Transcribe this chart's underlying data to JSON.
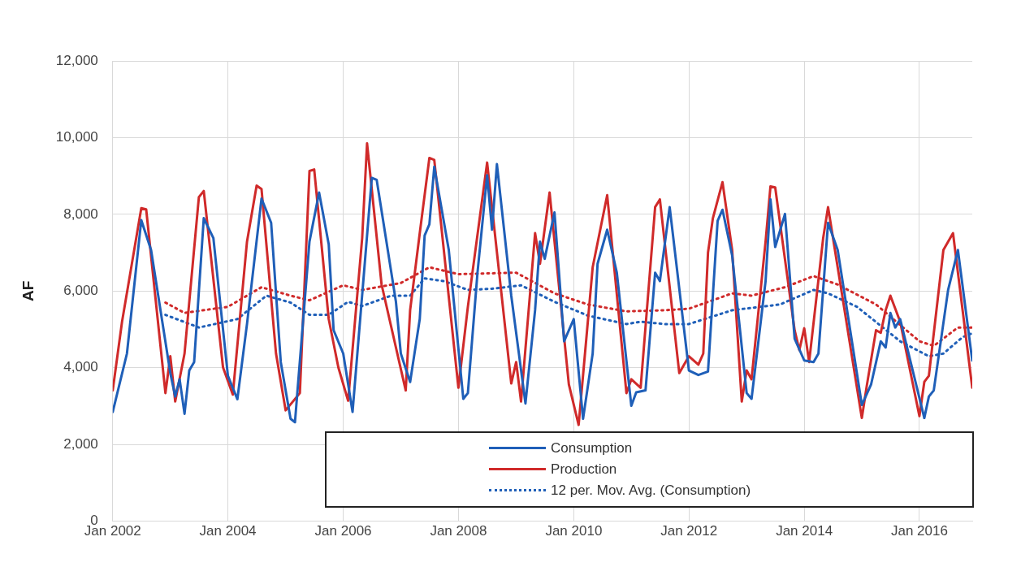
{
  "chart_data": {
    "type": "line",
    "ylabel": "AF",
    "xlim": [
      "2002-01",
      "2016-12"
    ],
    "xticks": [
      {
        "value": "2002-01",
        "label": "Jan 2002"
      },
      {
        "value": "2004-01",
        "label": "Jan 2004"
      },
      {
        "value": "2006-01",
        "label": "Jan 2006"
      },
      {
        "value": "2008-01",
        "label": "Jan 2008"
      },
      {
        "value": "2010-01",
        "label": "Jan 2010"
      },
      {
        "value": "2012-01",
        "label": "Jan 2012"
      },
      {
        "value": "2014-01",
        "label": "Jan 2014"
      },
      {
        "value": "2016-01",
        "label": "Jan 2016"
      }
    ],
    "ylim": [
      0,
      12000
    ],
    "yticks": [
      0,
      {
        "value": 2000,
        "label": "2,000"
      },
      {
        "value": 4000,
        "label": "4,000"
      },
      {
        "value": 6000,
        "label": "6,000"
      },
      {
        "value": 8000,
        "label": "8,000"
      },
      {
        "value": 10000,
        "label": "10,000"
      },
      {
        "value": 12000,
        "label": "12,000"
      }
    ],
    "grid": true,
    "legend": "bottom right",
    "marker": "none",
    "series": [
      {
        "name": "Consumption",
        "color": "#1f5fb8",
        "line_style": "solid",
        "x": [
          "2002-01",
          "2002-04",
          "2002-07",
          "2002-09",
          "2003-01",
          "2003-02",
          "2003-03",
          "2003-04",
          "2003-05",
          "2003-06",
          "2003-08",
          "2003-10",
          "2004-01",
          "2004-03",
          "2004-05",
          "2004-08",
          "2004-10",
          "2004-12",
          "2005-02",
          "2005-03",
          "2005-06",
          "2005-08",
          "2005-10",
          "2005-11",
          "2006-01",
          "2006-03",
          "2006-07",
          "2006-08",
          "2006-12",
          "2007-01",
          "2007-03",
          "2007-05",
          "2007-06",
          "2007-07",
          "2007-08",
          "2007-11",
          "2008-02",
          "2008-03",
          "2008-05",
          "2008-07",
          "2008-08",
          "2008-09",
          "2008-12",
          "2009-03",
          "2009-05",
          "2009-06",
          "2009-07",
          "2009-09",
          "2009-11",
          "2010-01",
          "2010-03",
          "2010-05",
          "2010-06",
          "2010-08",
          "2010-10",
          "2011-01",
          "2011-02",
          "2011-04",
          "2011-06",
          "2011-07",
          "2011-09",
          "2012-01",
          "2012-03",
          "2012-05",
          "2012-07",
          "2012-08",
          "2012-10",
          "2013-01",
          "2013-02",
          "2013-05",
          "2013-06",
          "2013-07",
          "2013-09",
          "2013-11",
          "2014-01",
          "2014-03",
          "2014-04",
          "2014-06",
          "2014-08",
          "2015-01",
          "2015-03",
          "2015-05",
          "2015-06",
          "2015-07",
          "2015-08",
          "2015-09",
          "2016-02",
          "2016-03",
          "2016-04",
          "2016-07",
          "2016-09",
          "2016-12"
        ],
        "values": [
          2850,
          4370,
          7850,
          7070,
          3860,
          3250,
          3700,
          2800,
          3930,
          4150,
          7900,
          7380,
          3790,
          3180,
          5140,
          8410,
          7780,
          4150,
          2670,
          2580,
          7290,
          8570,
          7220,
          4980,
          4370,
          2850,
          8950,
          8900,
          5720,
          4370,
          3630,
          5270,
          7450,
          7740,
          9240,
          7070,
          3190,
          3340,
          6480,
          9020,
          7600,
          9310,
          5880,
          3070,
          5500,
          7290,
          6840,
          8050,
          4690,
          5270,
          2670,
          4370,
          6710,
          7600,
          6480,
          3010,
          3360,
          3410,
          6480,
          6260,
          8190,
          3930,
          3810,
          3900,
          7830,
          8120,
          6930,
          3340,
          3190,
          6260,
          8390,
          7150,
          8010,
          4760,
          4190,
          4150,
          4370,
          7780,
          7070,
          3030,
          3570,
          4690,
          4530,
          5430,
          5050,
          5270,
          2690,
          3250,
          3410,
          6030,
          7070,
          4190
        ]
      },
      {
        "name": "Production",
        "color": "#d02a2a",
        "line_style": "solid",
        "x": [
          "2002-01",
          "2002-03",
          "2002-07",
          "2002-08",
          "2002-12",
          "2003-01",
          "2003-02",
          "2003-04",
          "2003-07",
          "2003-08",
          "2003-12",
          "2004-02",
          "2004-05",
          "2004-07",
          "2004-08",
          "2004-11",
          "2005-01",
          "2005-04",
          "2005-06",
          "2005-07",
          "2005-10",
          "2005-12",
          "2006-02",
          "2006-05",
          "2006-06",
          "2006-09",
          "2007-02",
          "2007-03",
          "2007-05",
          "2007-07",
          "2007-08",
          "2008-01",
          "2008-03",
          "2008-07",
          "2008-12",
          "2009-01",
          "2009-02",
          "2009-05",
          "2009-06",
          "2009-08",
          "2009-12",
          "2010-02",
          "2010-05",
          "2010-08",
          "2010-12",
          "2011-01",
          "2011-03",
          "2011-06",
          "2011-07",
          "2011-11",
          "2012-01",
          "2012-03",
          "2012-04",
          "2012-05",
          "2012-06",
          "2012-08",
          "2012-10",
          "2012-12",
          "2013-01",
          "2013-02",
          "2013-05",
          "2013-06",
          "2013-07",
          "2013-11",
          "2013-12",
          "2014-01",
          "2014-02",
          "2014-05",
          "2014-06",
          "2015-01",
          "2015-02",
          "2015-04",
          "2015-05",
          "2015-06",
          "2015-07",
          "2015-09",
          "2016-01",
          "2016-02",
          "2016-03",
          "2016-06",
          "2016-08",
          "2016-12"
        ],
        "values": [
          3410,
          5200,
          8160,
          8130,
          3340,
          4300,
          3120,
          4370,
          8450,
          8610,
          4010,
          3300,
          7290,
          8750,
          8660,
          4370,
          2890,
          3340,
          9130,
          9170,
          5270,
          4010,
          3140,
          7380,
          9850,
          6170,
          3410,
          5500,
          7510,
          9470,
          9420,
          3480,
          5590,
          9350,
          3590,
          4150,
          3120,
          7510,
          6710,
          8570,
          3570,
          2510,
          6620,
          8500,
          3340,
          3700,
          3480,
          8190,
          8390,
          3860,
          4300,
          4080,
          4370,
          7000,
          7900,
          8840,
          7070,
          3120,
          3930,
          3700,
          7290,
          8730,
          8700,
          4980,
          4460,
          5030,
          4150,
          7380,
          8190,
          2690,
          3520,
          4980,
          4910,
          5500,
          5880,
          5200,
          2740,
          3630,
          3790,
          7070,
          7510,
          3480
        ]
      },
      {
        "name": "12 per. Mov. Avg. (Consumption)",
        "color": "#1f5fb8",
        "line_style": "dotted",
        "x": [
          "2002-12",
          "2003-07",
          "2004-03",
          "2004-09",
          "2005-02",
          "2005-06",
          "2005-10",
          "2006-02",
          "2006-05",
          "2006-11",
          "2007-03",
          "2007-06",
          "2007-10",
          "2008-03",
          "2008-08",
          "2009-02",
          "2009-09",
          "2010-04",
          "2010-12",
          "2011-03",
          "2011-08",
          "2012-01",
          "2012-10",
          "2013-08",
          "2014-03",
          "2014-06",
          "2014-12",
          "2015-09",
          "2016-03",
          "2016-06",
          "2016-10",
          "2016-12"
        ],
        "values": [
          5380,
          5050,
          5270,
          5880,
          5700,
          5380,
          5380,
          5720,
          5610,
          5880,
          5880,
          6330,
          6260,
          6030,
          6060,
          6150,
          5720,
          5360,
          5140,
          5200,
          5140,
          5140,
          5500,
          5650,
          6030,
          5940,
          5590,
          4690,
          4300,
          4370,
          4800,
          4900
        ]
      },
      {
        "color": "#d02a2a",
        "line_style": "dotted",
        "x": [
          "2002-12",
          "2003-04",
          "2004-01",
          "2004-08",
          "2005-02",
          "2005-06",
          "2006-01",
          "2006-05",
          "2007-01",
          "2007-07",
          "2008-01",
          "2009-01",
          "2009-09",
          "2010-04",
          "2010-12",
          "2011-08",
          "2012-01",
          "2012-10",
          "2013-02",
          "2013-09",
          "2014-03",
          "2014-08",
          "2015-04",
          "2016-01",
          "2016-04",
          "2016-09",
          "2016-12"
        ],
        "values": [
          5700,
          5430,
          5590,
          6100,
          5880,
          5760,
          6150,
          6030,
          6210,
          6620,
          6440,
          6480,
          5940,
          5650,
          5470,
          5500,
          5540,
          5940,
          5880,
          6100,
          6390,
          6170,
          5650,
          4690,
          4570,
          5050,
          5050
        ]
      }
    ]
  }
}
